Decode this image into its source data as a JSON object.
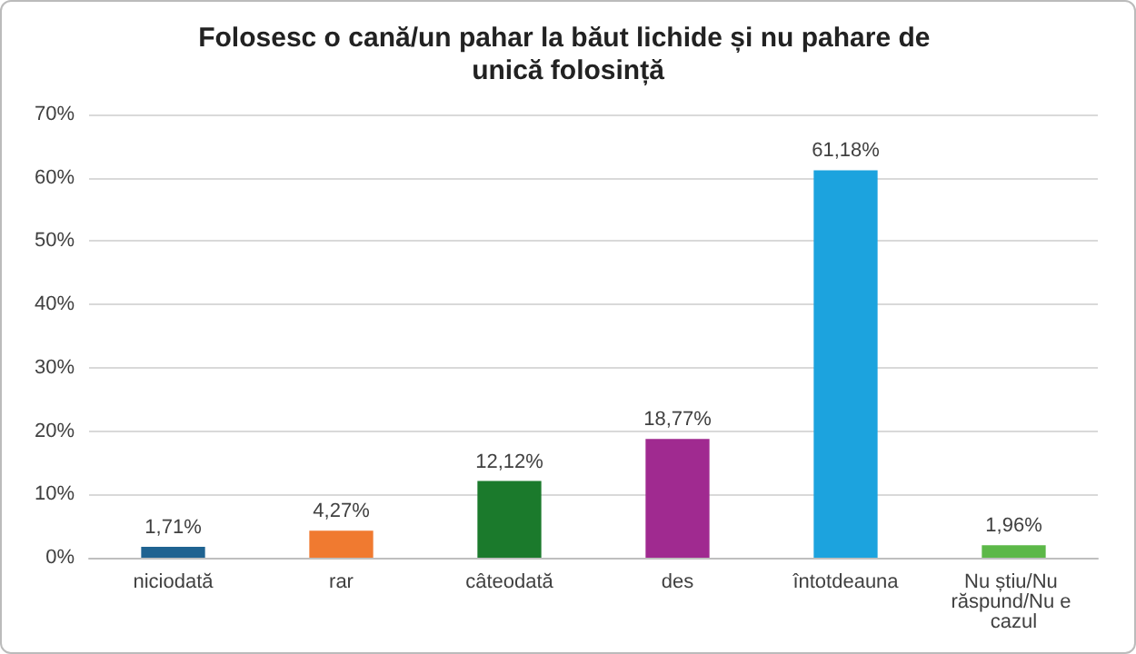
{
  "chart_data": {
    "type": "bar",
    "title": "Folosesc o cană/un pahar la băut lichide și nu pahare de unică folosință",
    "categories": [
      "niciodată",
      "rar",
      "câteodată",
      "des",
      "întotdeauna",
      "Nu știu/Nu răspund/Nu e cazul"
    ],
    "values": [
      1.71,
      4.27,
      12.12,
      18.77,
      61.18,
      1.96
    ],
    "colors": [
      "#1f6391",
      "#f07a30",
      "#1b7a2c",
      "#a02a90",
      "#1ca3de",
      "#5cb848"
    ],
    "value_labels": [
      "1,71%",
      "4,27%",
      "12,12%",
      "18,77%",
      "61,18%",
      "1,96%"
    ],
    "ylim": [
      0,
      70
    ],
    "yticks": [
      {
        "value": 0,
        "label": "0%"
      },
      {
        "value": 10,
        "label": "10%"
      },
      {
        "value": 20,
        "label": "20%"
      },
      {
        "value": 30,
        "label": "30%"
      },
      {
        "value": 40,
        "label": "40%"
      },
      {
        "value": 50,
        "label": "50%"
      },
      {
        "value": 60,
        "label": "60%"
      },
      {
        "value": 70,
        "label": "70%"
      }
    ],
    "grid": "y"
  }
}
